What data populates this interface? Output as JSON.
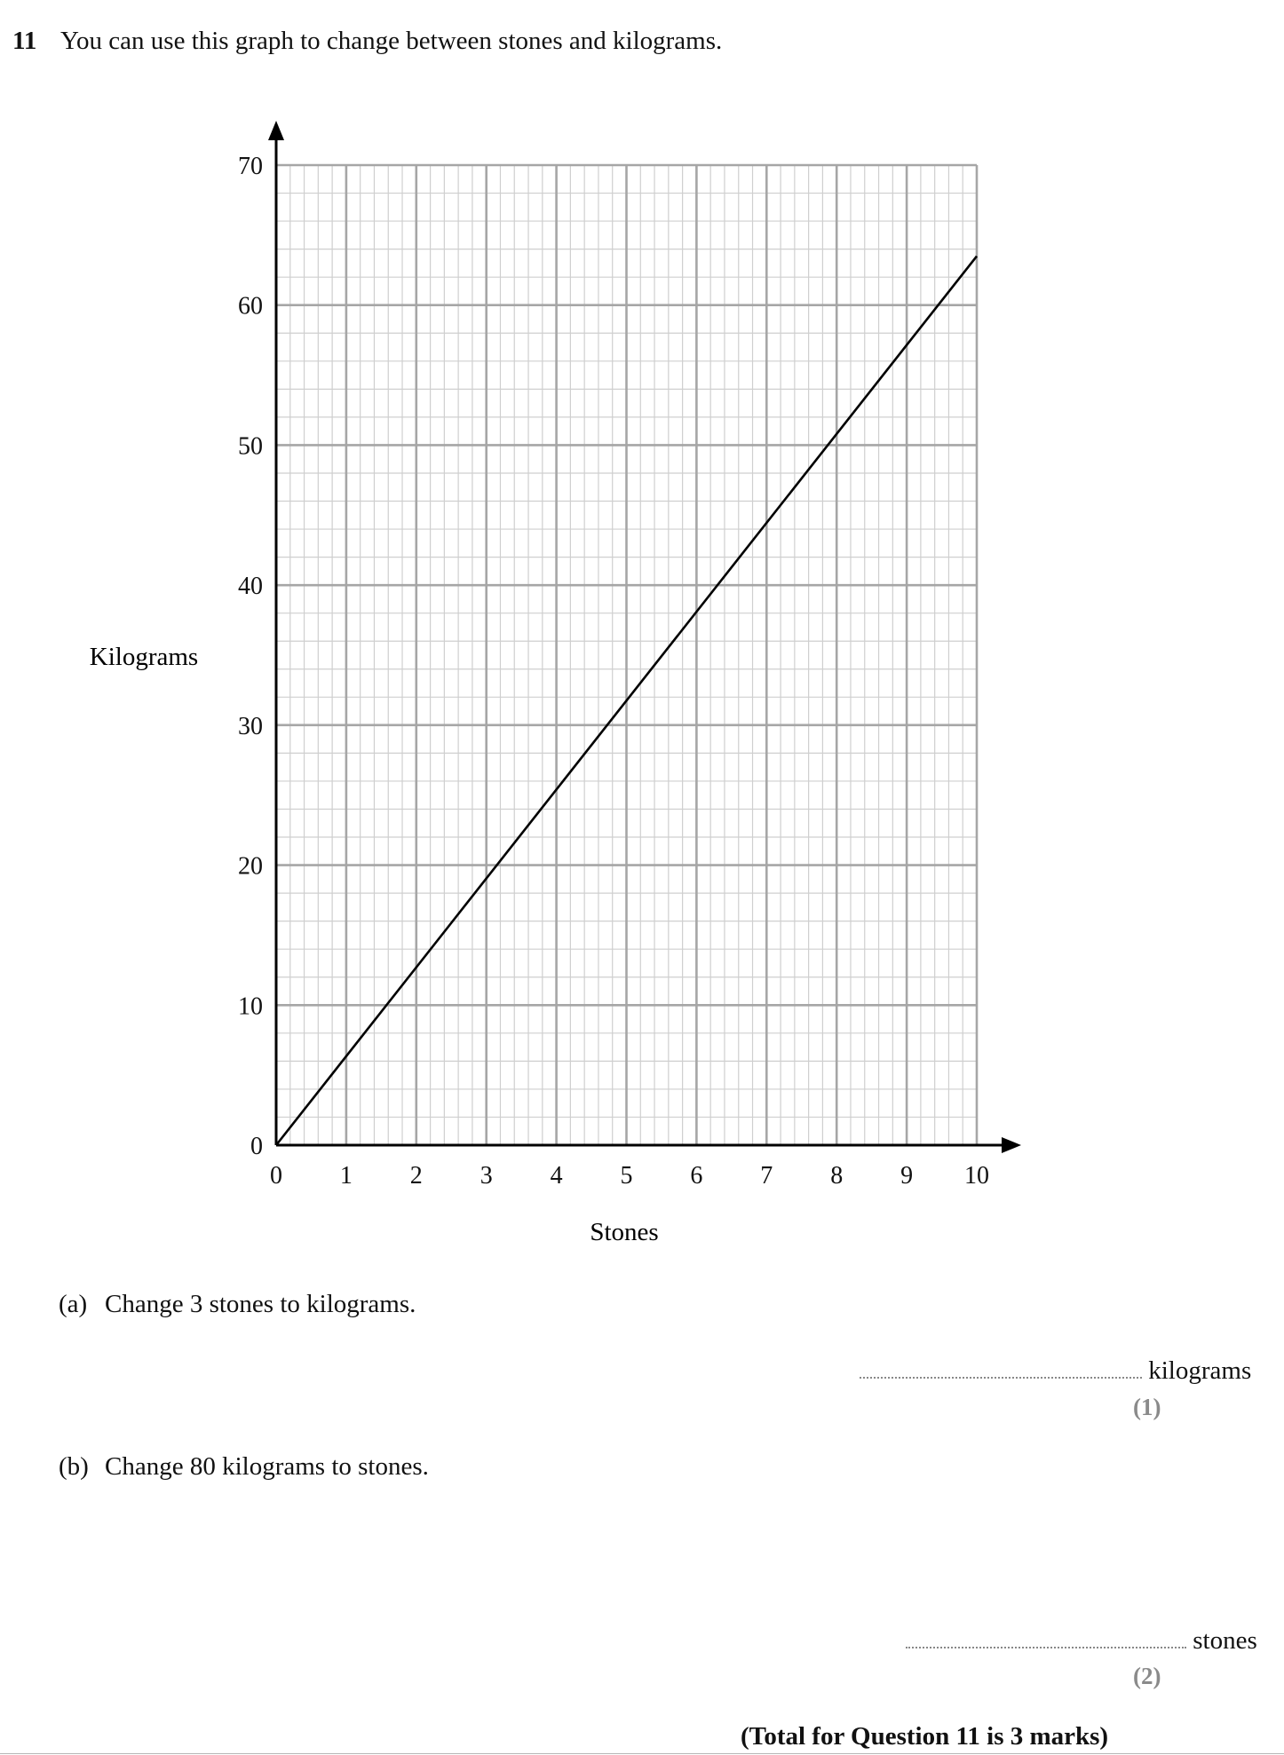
{
  "question": {
    "number": "11",
    "text": "You can use this graph to change between stones and kilograms."
  },
  "chart_data": {
    "type": "line",
    "xlabel": "Stones",
    "ylabel": "Kilograms",
    "xlim": [
      0,
      10
    ],
    "ylim": [
      0,
      70
    ],
    "x_ticks": [
      "0",
      "1",
      "2",
      "3",
      "4",
      "5",
      "6",
      "7",
      "8",
      "9",
      "10"
    ],
    "y_ticks": [
      "0",
      "10",
      "20",
      "30",
      "40",
      "50",
      "60",
      "70"
    ],
    "grid": true,
    "series": [
      {
        "x": [
          0,
          10
        ],
        "y": [
          0,
          63.5
        ]
      }
    ]
  },
  "parts": {
    "a": {
      "label": "(a)",
      "text": "Change 3 stones to kilograms.",
      "unit": "kilograms",
      "marks": "(1)"
    },
    "b": {
      "label": "(b)",
      "text": "Change 80 kilograms to stones.",
      "unit": "stones",
      "marks": "(2)"
    }
  },
  "total": "(Total for Question 11 is 3 marks)",
  "colors": {
    "grid_major": "#a6a6a6",
    "grid_minor": "#cfcfcf",
    "axis": "#000000",
    "line": "#000000",
    "marks_text": "#8a8a8a"
  }
}
